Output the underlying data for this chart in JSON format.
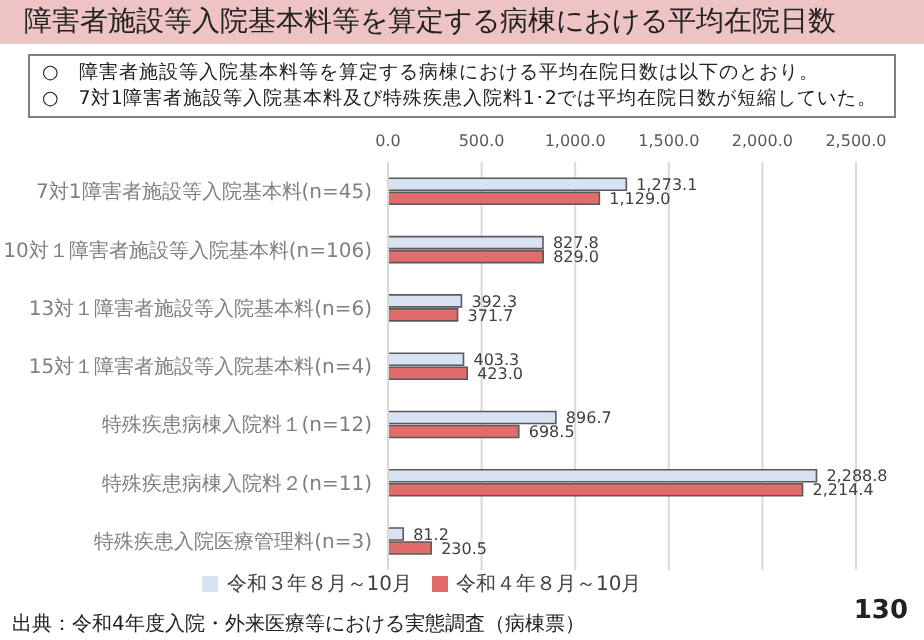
{
  "chart_data": {
    "type": "bar",
    "orientation": "horizontal",
    "title": "障害者施設等入院基本料等を算定する病棟における平均在院日数",
    "annotations": [
      "○　障害者施設等入院基本料等を算定する病棟における平均在院日数は以下のとおり。",
      "○　7対1障害者施設等入院基本料及び特殊疾患入院料1･2では平均在院日数が短縮していた。",
      "出典：令和4年度入院・外来医療等における実態調査（病棟票）",
      "130"
    ],
    "categories": [
      "7対1障害者施設等入院基本料(n=45)",
      "10対１障害者施設等入院基本料(n=106)",
      "13対１障害者施設等入院基本料(n=6)",
      "15対１障害者施設等入院基本料(n=4)",
      "特殊疾患病棟入院料１(n=12)",
      "特殊疾患病棟入院料２(n=11)",
      "特殊疾患入院医療管理料(n=3)"
    ],
    "series": [
      {
        "name": "令和３年８月～10月",
        "color": "#d9e2f3",
        "values": [
          1273.1,
          827.8,
          392.3,
          403.3,
          896.7,
          2288.8,
          81.2
        ],
        "value_labels": [
          "1,273.1",
          "827.8",
          "392.3",
          "403.3",
          "896.7",
          "2,288.8",
          "81.2"
        ]
      },
      {
        "name": "令和４年８月～10月",
        "color": "#e06c6c",
        "values": [
          1129.0,
          829.0,
          371.7,
          423.0,
          698.5,
          2214.4,
          230.5
        ],
        "value_labels": [
          "1,129.0",
          "829.0",
          "371.7",
          "423.0",
          "698.5",
          "2,214.4",
          "230.5"
        ]
      }
    ],
    "xlim": [
      0,
      2500
    ],
    "xticks": [
      {
        "value": 0,
        "label": "0.0"
      },
      {
        "value": 500,
        "label": "500.0"
      },
      {
        "value": 1000,
        "label": "1,000.0"
      },
      {
        "value": 1500,
        "label": "1,500.0"
      },
      {
        "value": 2000,
        "label": "2,000.0"
      },
      {
        "value": 2500,
        "label": "2,500.0"
      }
    ],
    "grid": "x",
    "legend": "bottom"
  }
}
